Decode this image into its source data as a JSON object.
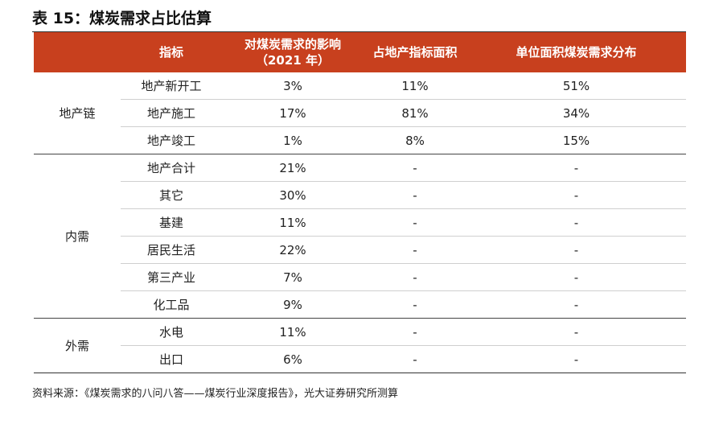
{
  "title": "表 15：煤炭需求占比估算",
  "headers": {
    "group": "",
    "indicator": "指标",
    "impact_line1": "对煤炭需求的影响",
    "impact_line2": "（2021 年）",
    "area_share": "占地产指标面积",
    "unit_demand": "单位面积煤炭需求分布"
  },
  "groups": [
    {
      "name": "地产链",
      "rows": [
        {
          "indicator": "地产新开工",
          "impact": "3%",
          "area_share": "11%",
          "unit_demand": "51%"
        },
        {
          "indicator": "地产施工",
          "impact": "17%",
          "area_share": "81%",
          "unit_demand": "34%"
        },
        {
          "indicator": "地产竣工",
          "impact": "1%",
          "area_share": "8%",
          "unit_demand": "15%"
        }
      ]
    },
    {
      "name": "内需",
      "rows": [
        {
          "indicator": "地产合计",
          "impact": "21%",
          "area_share": "-",
          "unit_demand": "-"
        },
        {
          "indicator": "其它",
          "impact": "30%",
          "area_share": "-",
          "unit_demand": "-"
        },
        {
          "indicator": "基建",
          "impact": "11%",
          "area_share": "-",
          "unit_demand": "-"
        },
        {
          "indicator": "居民生活",
          "impact": "22%",
          "area_share": "-",
          "unit_demand": "-"
        },
        {
          "indicator": "第三产业",
          "impact": "7%",
          "area_share": "-",
          "unit_demand": "-"
        },
        {
          "indicator": "化工品",
          "impact": "9%",
          "area_share": "-",
          "unit_demand": "-"
        }
      ]
    },
    {
      "name": "外需",
      "rows": [
        {
          "indicator": "水电",
          "impact": "11%",
          "area_share": "-",
          "unit_demand": "-"
        },
        {
          "indicator": "出口",
          "impact": "6%",
          "area_share": "-",
          "unit_demand": "-"
        }
      ]
    }
  ],
  "source": "资料来源：《煤炭需求的八问八答——煤炭行业深度报告》，光大证券研究所测算",
  "colors": {
    "header_bg": "#c8401e",
    "header_text": "#ffffff"
  }
}
